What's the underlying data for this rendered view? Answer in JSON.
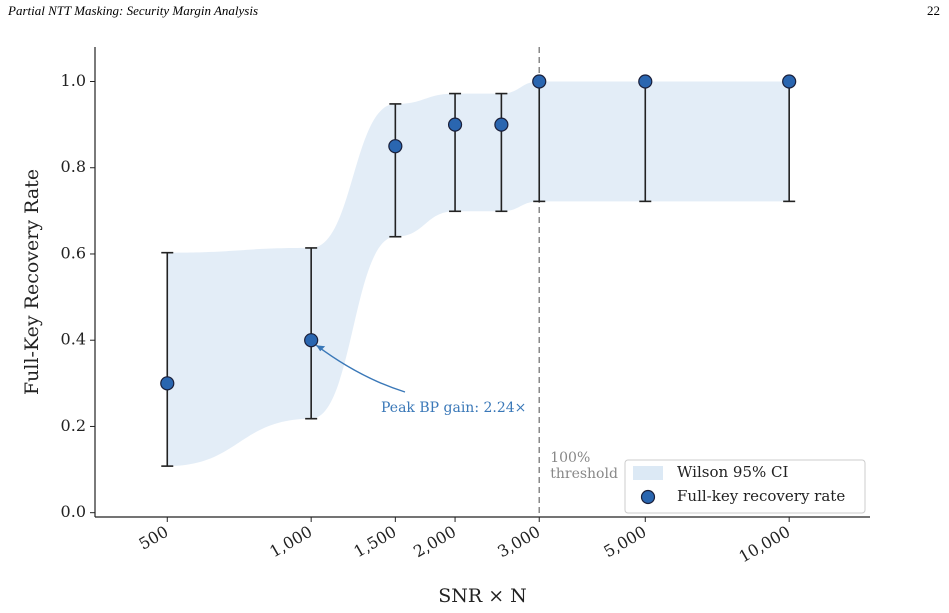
{
  "header": {
    "title": "Partial NTT Masking: Security Margin Analysis",
    "page_number": "22"
  },
  "chart_data": {
    "type": "errorbar-scatter",
    "x_label": "SNR × N",
    "y_label": "Full-Key Recovery Rate",
    "x": [
      500,
      1000,
      1500,
      2000,
      2500,
      3000,
      5000,
      10000
    ],
    "series": [
      {
        "name": "Full-key recovery rate",
        "color": "#2a66b0",
        "values": [
          0.3,
          0.4,
          0.85,
          0.9,
          0.9,
          1.0,
          1.0,
          1.0
        ],
        "ci_lower": [
          0.108,
          0.218,
          0.64,
          0.699,
          0.699,
          0.722,
          0.722,
          0.722
        ],
        "ci_upper": [
          0.603,
          0.614,
          0.948,
          0.972,
          0.972,
          1.0,
          1.0,
          1.0
        ]
      }
    ],
    "band": {
      "name": "Wilson 95% CI",
      "color": "#dce9f5"
    },
    "x_log": true,
    "xlim": [
      353,
      14760
    ],
    "xticks": [
      500,
      {
        "value": 1000,
        "label": "1,000"
      },
      {
        "value": 1500,
        "label": "1,500"
      },
      {
        "value": 2000,
        "label": "2,000"
      },
      {
        "value": 3000,
        "label": "3,000"
      },
      {
        "value": 5000,
        "label": "5,000"
      },
      {
        "value": 10000,
        "label": "10,000"
      }
    ],
    "ylim": [
      -0.01,
      1.08
    ],
    "yticks": [
      {
        "value": 0,
        "label": "0.0"
      },
      0.2,
      0.4,
      0.6,
      0.8,
      {
        "value": 1,
        "label": "1.0"
      }
    ],
    "grid": false,
    "legend": "lower right",
    "threshold": {
      "x": 3000,
      "label": "100%\nthreshold"
    },
    "annotation": {
      "text": "Peak BP gain: 2.24×",
      "point_index": 1,
      "color": "#3a78b8"
    }
  }
}
